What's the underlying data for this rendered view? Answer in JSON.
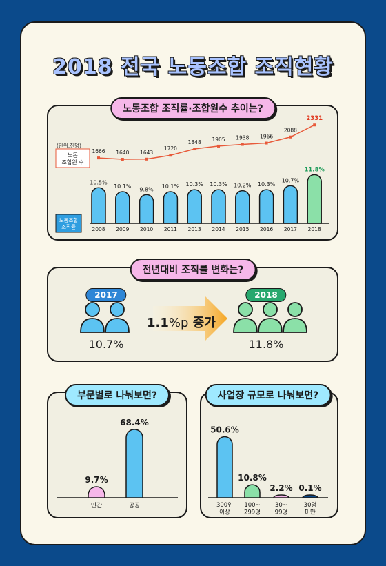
{
  "title": "2018 전국 노동조합 조직현황",
  "sections": {
    "trend_label": "노동조합 조직률·조합원수 추이는?",
    "change_label": "전년대비 조직률 변화는?",
    "sector_label": "부문별로 나눠보면?",
    "size_label": "사업장 규모로 나눠보면?"
  },
  "trend": {
    "unit_note": "(단위:천명)",
    "members_label": "노동\n조합원 수",
    "rate_label": "노동조합\n조직률"
  },
  "change": {
    "year_from": "2017",
    "year_to": "2018",
    "rate_from": "10.7%",
    "rate_to": "11.8%",
    "value": "1.1",
    "unit": "%p",
    "word": "증가"
  },
  "colors": {
    "blue": "#5cc3f2",
    "green": "#8be0a8",
    "pink": "#f6b7e9",
    "navy": "#0b4a8b",
    "line": "#e85a3a",
    "chip_blue": "#2f86d6",
    "chip_green": "#28a86e"
  },
  "chart_data": [
    {
      "type": "bar",
      "categories": [
        "2008",
        "2009",
        "2010",
        "2011",
        "2013",
        "2014",
        "2015",
        "2016",
        "2017",
        "2018"
      ],
      "series": [
        {
          "name": "노동조합 조직률",
          "values": [
            10.5,
            10.1,
            9.8,
            10.1,
            10.3,
            10.3,
            10.2,
            10.3,
            10.7,
            11.8
          ],
          "labels": [
            "10.5%",
            "10.1%",
            "9.8%",
            "10.1%",
            "10.3%",
            "10.3%",
            "10.2%",
            "10.3%",
            "10.7%",
            "11.8%"
          ]
        },
        {
          "name": "노동 조합원 수",
          "values": [
            1666,
            1640,
            1643,
            1720,
            1848,
            1905,
            1938,
            1966,
            2088,
            2331
          ]
        }
      ]
    },
    {
      "type": "bar",
      "categories": [
        "민간",
        "공공"
      ],
      "values": [
        9.7,
        68.4
      ],
      "labels": [
        "9.7%",
        "68.4%"
      ]
    },
    {
      "type": "bar",
      "categories": [
        "300인\n이상",
        "100~\n299명",
        "30~\n99명",
        "30명\n미만"
      ],
      "values": [
        50.6,
        10.8,
        2.2,
        0.1
      ],
      "labels": [
        "50.6%",
        "10.8%",
        "2.2%",
        "0.1%"
      ]
    }
  ]
}
